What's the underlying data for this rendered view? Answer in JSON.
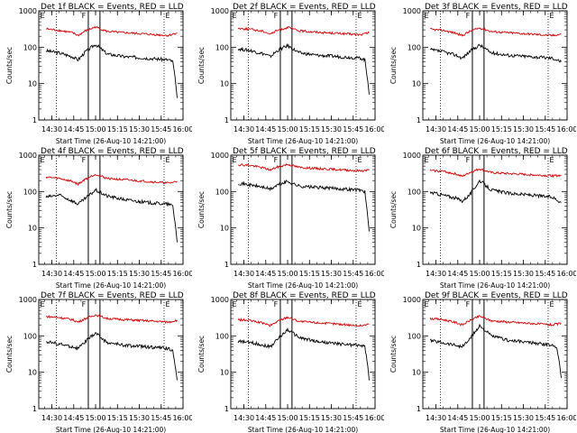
{
  "figure": {
    "panels": [
      {
        "title": "Det 1f BLACK = Events, RED = LLD"
      },
      {
        "title": "Det 2f BLACK = Events, RED = LLD"
      },
      {
        "title": "Det 3f BLACK = Events, RED = LLD"
      },
      {
        "title": "Det 4f BLACK = Events, RED = LLD"
      },
      {
        "title": "Det 5f BLACK = Events, RED = LLD"
      },
      {
        "title": "Det 6f BLACK = Events, RED = LLD"
      },
      {
        "title": "Det 7f BLACK = Events, RED = LLD"
      },
      {
        "title": "Det 8f BLACK = Events, RED = LLD"
      },
      {
        "title": "Det 9f BLACK = Events, RED = LLD"
      }
    ],
    "xlabel": "Start Time (26-Aug-10 14:21:00)",
    "ylabel": "Counts/sec",
    "x_ticks": [
      "14:30",
      "14:45",
      "15:00",
      "15:15",
      "15:30",
      "15:45",
      "16:00"
    ],
    "y_ticks": [
      "1",
      "10",
      "100",
      "1000"
    ],
    "markers": {
      "left": "E",
      "middle": "F",
      "right": "E"
    },
    "colors": {
      "events": "#000000",
      "lld": "#d40000"
    }
  },
  "chart_data": [
    {
      "type": "line",
      "title": "Det 1f BLACK = Events, RED = LLD",
      "xlabel": "Start Time (26-Aug-10 14:21:00)",
      "ylabel": "Counts/sec",
      "x_range": [
        "14:21",
        "16:00"
      ],
      "ylim": [
        1,
        1000
      ],
      "y_scale": "log",
      "series": [
        {
          "name": "Events",
          "color": "#000000",
          "x": [
            "14:26",
            "14:35",
            "14:44",
            "14:48",
            "14:53",
            "15:00",
            "15:08",
            "15:20",
            "15:35",
            "15:50",
            "15:53",
            "15:55",
            "15:56"
          ],
          "y": [
            80,
            70,
            55,
            45,
            75,
            120,
            65,
            55,
            50,
            45,
            40,
            10,
            4
          ]
        },
        {
          "name": "LLD",
          "color": "#d40000",
          "x": [
            "14:26",
            "14:35",
            "14:44",
            "14:48",
            "14:53",
            "15:00",
            "15:08",
            "15:20",
            "15:35",
            "15:50",
            "15:56"
          ],
          "y": [
            320,
            290,
            250,
            210,
            280,
            360,
            270,
            250,
            230,
            210,
            250
          ]
        }
      ],
      "vlines_solid": [
        "14:55",
        "15:03"
      ],
      "vlines_dotted": [
        "14:33",
        "15:47"
      ]
    },
    {
      "type": "line",
      "title": "Det 2f BLACK = Events, RED = LLD",
      "xlabel": "Start Time (26-Aug-10 14:21:00)",
      "ylabel": "Counts/sec",
      "x_range": [
        "14:21",
        "16:00"
      ],
      "ylim": [
        1,
        1000
      ],
      "y_scale": "log",
      "series": [
        {
          "name": "Events",
          "color": "#000000",
          "x": [
            "14:26",
            "14:35",
            "14:44",
            "14:48",
            "14:53",
            "15:00",
            "15:08",
            "15:20",
            "15:35",
            "15:50",
            "15:53",
            "15:55",
            "15:56"
          ],
          "y": [
            90,
            80,
            65,
            55,
            80,
            110,
            70,
            60,
            55,
            50,
            45,
            12,
            5
          ]
        },
        {
          "name": "LLD",
          "color": "#d40000",
          "x": [
            "14:26",
            "14:35",
            "14:44",
            "14:48",
            "14:53",
            "15:00",
            "15:08",
            "15:20",
            "15:35",
            "15:50",
            "15:56"
          ],
          "y": [
            330,
            310,
            270,
            230,
            290,
            350,
            280,
            260,
            240,
            220,
            250
          ]
        }
      ],
      "vlines_solid": [
        "14:55",
        "15:03"
      ],
      "vlines_dotted": [
        "14:33",
        "15:47"
      ]
    },
    {
      "type": "line",
      "title": "Det 3f BLACK = Events, RED = LLD",
      "xlabel": "Start Time (26-Aug-10 14:21:00)",
      "ylabel": "Counts/sec",
      "x_range": [
        "14:21",
        "16:00"
      ],
      "ylim": [
        1,
        1000
      ],
      "y_scale": "log",
      "series": [
        {
          "name": "Events",
          "color": "#000000",
          "x": [
            "14:26",
            "14:35",
            "14:44",
            "14:48",
            "14:53",
            "15:00",
            "15:08",
            "15:20",
            "15:35",
            "15:50",
            "15:53",
            "15:56"
          ],
          "y": [
            85,
            75,
            60,
            50,
            75,
            115,
            70,
            60,
            55,
            50,
            45,
            40
          ]
        },
        {
          "name": "LLD",
          "color": "#d40000",
          "x": [
            "14:26",
            "14:35",
            "14:44",
            "14:48",
            "14:53",
            "15:00",
            "15:08",
            "15:20",
            "15:35",
            "15:50",
            "15:56"
          ],
          "y": [
            310,
            290,
            240,
            210,
            270,
            340,
            270,
            250,
            230,
            210,
            230
          ]
        }
      ],
      "vlines_solid": [
        "14:55",
        "15:03"
      ],
      "vlines_dotted": [
        "14:33",
        "15:47"
      ]
    },
    {
      "type": "line",
      "title": "Det 4f BLACK = Events, RED = LLD",
      "xlabel": "Start Time (26-Aug-10 14:21:00)",
      "ylabel": "Counts/sec",
      "x_range": [
        "14:21",
        "16:00"
      ],
      "ylim": [
        1,
        1000
      ],
      "y_scale": "log",
      "series": [
        {
          "name": "Events",
          "color": "#000000",
          "x": [
            "14:26",
            "14:35",
            "14:44",
            "14:48",
            "14:53",
            "15:00",
            "15:08",
            "15:20",
            "15:35",
            "15:50",
            "15:53",
            "15:55",
            "15:56"
          ],
          "y": [
            70,
            80,
            55,
            45,
            65,
            110,
            75,
            60,
            50,
            45,
            40,
            10,
            4
          ]
        },
        {
          "name": "LLD",
          "color": "#d40000",
          "x": [
            "14:26",
            "14:35",
            "14:44",
            "14:48",
            "14:53",
            "15:00",
            "15:08",
            "15:20",
            "15:35",
            "15:50",
            "15:56"
          ],
          "y": [
            250,
            230,
            190,
            160,
            220,
            300,
            230,
            210,
            190,
            170,
            190
          ]
        }
      ],
      "vlines_solid": [
        "14:55",
        "15:03"
      ],
      "vlines_dotted": [
        "14:33",
        "15:47"
      ]
    },
    {
      "type": "line",
      "title": "Det 5f BLACK = Events, RED = LLD",
      "xlabel": "Start Time (26-Aug-10 14:21:00)",
      "ylabel": "Counts/sec",
      "x_range": [
        "14:21",
        "16:00"
      ],
      "ylim": [
        1,
        1000
      ],
      "y_scale": "log",
      "series": [
        {
          "name": "Events",
          "color": "#000000",
          "x": [
            "14:26",
            "14:35",
            "14:44",
            "14:48",
            "14:53",
            "15:00",
            "15:08",
            "15:20",
            "15:35",
            "15:50",
            "15:53",
            "15:55",
            "15:56"
          ],
          "y": [
            170,
            150,
            130,
            115,
            150,
            190,
            140,
            130,
            120,
            110,
            100,
            20,
            8
          ]
        },
        {
          "name": "LLD",
          "color": "#d40000",
          "x": [
            "14:26",
            "14:35",
            "14:44",
            "14:48",
            "14:53",
            "15:00",
            "15:08",
            "15:20",
            "15:35",
            "15:50",
            "15:56"
          ],
          "y": [
            550,
            520,
            440,
            390,
            470,
            560,
            460,
            430,
            400,
            370,
            390
          ]
        }
      ],
      "vlines_solid": [
        "14:55",
        "15:03"
      ],
      "vlines_dotted": [
        "14:33",
        "15:47"
      ]
    },
    {
      "type": "line",
      "title": "Det 6f BLACK = Events, RED = LLD",
      "xlabel": "Start Time (26-Aug-10 14:21:00)",
      "ylabel": "Counts/sec",
      "x_range": [
        "14:21",
        "16:00"
      ],
      "ylim": [
        1,
        1000
      ],
      "y_scale": "log",
      "series": [
        {
          "name": "Events",
          "color": "#000000",
          "x": [
            "14:26",
            "14:35",
            "14:44",
            "14:48",
            "14:53",
            "15:00",
            "15:08",
            "15:20",
            "15:35",
            "15:50",
            "15:53",
            "15:56"
          ],
          "y": [
            95,
            80,
            65,
            55,
            80,
            200,
            110,
            90,
            80,
            70,
            60,
            50
          ]
        },
        {
          "name": "LLD",
          "color": "#d40000",
          "x": [
            "14:26",
            "14:35",
            "14:44",
            "14:48",
            "14:53",
            "15:00",
            "15:08",
            "15:20",
            "15:35",
            "15:50",
            "15:56"
          ],
          "y": [
            380,
            360,
            300,
            260,
            330,
            420,
            330,
            310,
            290,
            270,
            280
          ]
        }
      ],
      "vlines_solid": [
        "14:55",
        "15:03"
      ],
      "vlines_dotted": [
        "14:33",
        "15:47"
      ]
    },
    {
      "type": "line",
      "title": "Det 7f BLACK = Events, RED = LLD",
      "xlabel": "Start Time (26-Aug-10 14:21:00)",
      "ylabel": "Counts/sec",
      "x_range": [
        "14:21",
        "16:00"
      ],
      "ylim": [
        1,
        1000
      ],
      "y_scale": "log",
      "series": [
        {
          "name": "Events",
          "color": "#000000",
          "x": [
            "14:26",
            "14:35",
            "14:44",
            "14:48",
            "14:53",
            "15:00",
            "15:08",
            "15:20",
            "15:35",
            "15:50",
            "15:53",
            "15:55",
            "15:56"
          ],
          "y": [
            70,
            60,
            50,
            45,
            70,
            120,
            65,
            55,
            50,
            45,
            40,
            12,
            6
          ]
        },
        {
          "name": "LLD",
          "color": "#d40000",
          "x": [
            "14:26",
            "14:35",
            "14:44",
            "14:48",
            "14:53",
            "15:00",
            "15:08",
            "15:20",
            "15:35",
            "15:50",
            "15:56"
          ],
          "y": [
            340,
            320,
            280,
            240,
            300,
            380,
            300,
            280,
            260,
            240,
            270
          ]
        }
      ],
      "vlines_solid": [
        "14:55",
        "15:03"
      ],
      "vlines_dotted": [
        "14:33",
        "15:47"
      ]
    },
    {
      "type": "line",
      "title": "Det 8f BLACK = Events, RED = LLD",
      "xlabel": "Start Time (26-Aug-10 14:21:00)",
      "ylabel": "Counts/sec",
      "x_range": [
        "14:21",
        "16:00"
      ],
      "ylim": [
        1,
        1000
      ],
      "y_scale": "log",
      "series": [
        {
          "name": "Events",
          "color": "#000000",
          "x": [
            "14:26",
            "14:35",
            "14:44",
            "14:48",
            "14:53",
            "15:00",
            "15:08",
            "15:20",
            "15:35",
            "15:50",
            "15:53",
            "15:55",
            "15:56"
          ],
          "y": [
            70,
            65,
            55,
            50,
            80,
            150,
            90,
            70,
            60,
            55,
            50,
            15,
            6
          ]
        },
        {
          "name": "LLD",
          "color": "#d40000",
          "x": [
            "14:26",
            "14:35",
            "14:44",
            "14:48",
            "14:53",
            "15:00",
            "15:08",
            "15:20",
            "15:35",
            "15:50",
            "15:56"
          ],
          "y": [
            280,
            260,
            220,
            190,
            250,
            330,
            250,
            230,
            210,
            190,
            210
          ]
        }
      ],
      "vlines_solid": [
        "14:55",
        "15:03"
      ],
      "vlines_dotted": [
        "14:33",
        "15:47"
      ]
    },
    {
      "type": "line",
      "title": "Det 9f BLACK = Events, RED = LLD",
      "xlabel": "Start Time (26-Aug-10 14:21:00)",
      "ylabel": "Counts/sec",
      "x_range": [
        "14:21",
        "16:00"
      ],
      "ylim": [
        1,
        1000
      ],
      "y_scale": "log",
      "series": [
        {
          "name": "Events",
          "color": "#000000",
          "x": [
            "14:26",
            "14:35",
            "14:44",
            "14:48",
            "14:53",
            "15:00",
            "15:08",
            "15:20",
            "15:35",
            "15:50",
            "15:53",
            "15:55",
            "15:56"
          ],
          "y": [
            75,
            65,
            55,
            50,
            80,
            190,
            100,
            75,
            65,
            55,
            50,
            15,
            7
          ]
        },
        {
          "name": "LLD",
          "color": "#d40000",
          "x": [
            "14:26",
            "14:35",
            "14:44",
            "14:48",
            "14:53",
            "15:00",
            "15:08",
            "15:20",
            "15:35",
            "15:50",
            "15:56"
          ],
          "y": [
            300,
            280,
            230,
            200,
            260,
            350,
            260,
            240,
            220,
            200,
            220
          ]
        }
      ],
      "vlines_solid": [
        "14:55",
        "15:03"
      ],
      "vlines_dotted": [
        "14:33",
        "15:47"
      ]
    }
  ]
}
